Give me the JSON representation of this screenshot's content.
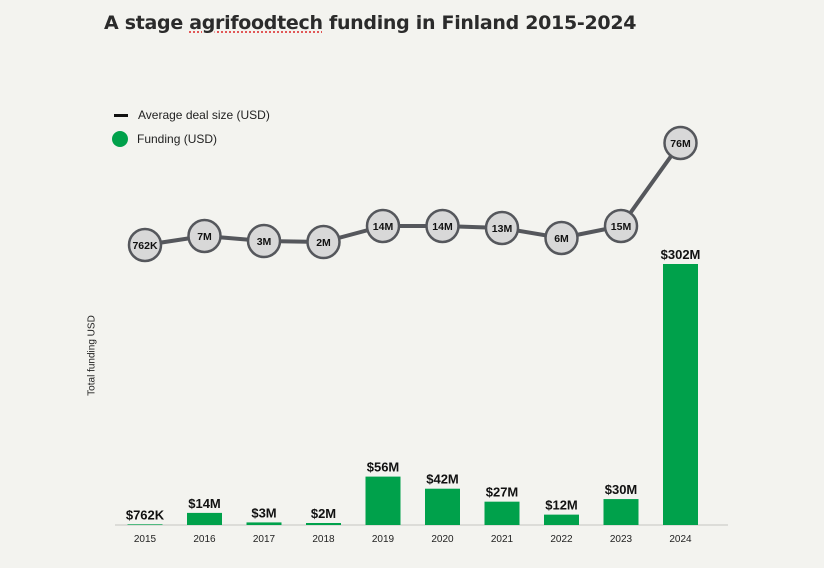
{
  "chart_data": {
    "type": "bar",
    "title_prefix": "A stage ",
    "title_word": "agrifoodtech",
    "title_suffix": " funding in Finland 2015-2024",
    "ylabel": "Total funding USD",
    "categories": [
      "2015",
      "2016",
      "2017",
      "2018",
      "2019",
      "2020",
      "2021",
      "2022",
      "2023",
      "2024"
    ],
    "series": [
      {
        "name": "Funding (USD)",
        "type": "bar",
        "color": "#00a14b",
        "values": [
          0.762,
          14,
          3,
          2,
          56,
          42,
          27,
          12,
          30,
          302
        ],
        "labels": [
          "$762K",
          "$14M",
          "$3M",
          "$2M",
          "$56M",
          "$42M",
          "$27M",
          "$12M",
          "$30M",
          "$302M"
        ]
      },
      {
        "name": "Average deal size (USD)",
        "type": "line",
        "color": "#55575c",
        "values": [
          0.762,
          7,
          3,
          2,
          14,
          14,
          13,
          6,
          15,
          76
        ],
        "labels": [
          "762K",
          "7M",
          "3M",
          "2M",
          "14M",
          "14M",
          "13M",
          "6M",
          "15M",
          "76M"
        ]
      }
    ],
    "legend": [
      "Average deal size (USD)",
      "Funding (USD)"
    ],
    "legend_position": "top-left",
    "grid": false
  }
}
